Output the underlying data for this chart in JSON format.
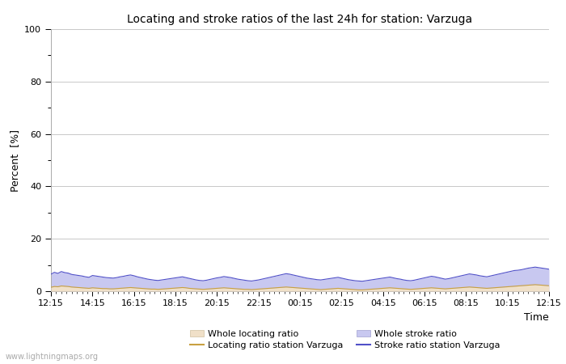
{
  "title": "Locating and stroke ratios of the last 24h for station: Varzuga",
  "ylabel": "Percent  [%]",
  "xlabel": "Time",
  "watermark": "www.lightningmaps.org",
  "ylim": [
    0,
    100
  ],
  "yticks": [
    0,
    20,
    40,
    60,
    80,
    100
  ],
  "ytick_minor": [
    10,
    30,
    50,
    70,
    90
  ],
  "xtick_labels": [
    "12:15",
    "14:15",
    "16:15",
    "18:15",
    "20:15",
    "22:15",
    "00:15",
    "02:15",
    "04:15",
    "06:15",
    "08:15",
    "10:15",
    "12:15"
  ],
  "bg_color": "#ffffff",
  "plot_bg_color": "#ffffff",
  "grid_color": "#c8c8c8",
  "stroke_ratio_fill_color": "#c8c8f0",
  "stroke_ratio_line_color": "#5050c8",
  "locating_ratio_fill_color": "#f0e0c8",
  "locating_ratio_line_color": "#c8a040",
  "n_points": 145,
  "stroke_ratio_data": [
    6.5,
    7.2,
    6.8,
    7.5,
    7.1,
    6.9,
    6.4,
    6.2,
    6.0,
    5.8,
    5.5,
    5.3,
    6.0,
    5.8,
    5.6,
    5.4,
    5.2,
    5.1,
    5.0,
    5.2,
    5.5,
    5.7,
    6.0,
    6.2,
    5.9,
    5.5,
    5.2,
    4.9,
    4.6,
    4.4,
    4.2,
    4.1,
    4.3,
    4.5,
    4.7,
    4.9,
    5.1,
    5.3,
    5.5,
    5.2,
    4.9,
    4.6,
    4.3,
    4.1,
    4.0,
    4.2,
    4.5,
    4.8,
    5.1,
    5.3,
    5.6,
    5.4,
    5.2,
    4.9,
    4.6,
    4.4,
    4.2,
    4.0,
    3.9,
    4.1,
    4.3,
    4.6,
    4.9,
    5.2,
    5.5,
    5.8,
    6.1,
    6.4,
    6.7,
    6.5,
    6.2,
    5.9,
    5.6,
    5.3,
    5.0,
    4.8,
    4.6,
    4.4,
    4.3,
    4.5,
    4.7,
    4.9,
    5.1,
    5.3,
    5.0,
    4.7,
    4.4,
    4.2,
    4.0,
    3.9,
    3.8,
    4.0,
    4.2,
    4.4,
    4.6,
    4.8,
    5.0,
    5.2,
    5.4,
    5.1,
    4.8,
    4.6,
    4.3,
    4.1,
    4.0,
    4.2,
    4.5,
    4.8,
    5.1,
    5.4,
    5.7,
    5.5,
    5.2,
    4.9,
    4.6,
    4.8,
    5.1,
    5.4,
    5.7,
    6.0,
    6.3,
    6.6,
    6.4,
    6.2,
    5.9,
    5.7,
    5.5,
    5.8,
    6.1,
    6.4,
    6.7,
    7.0,
    7.3,
    7.6,
    7.9,
    8.0,
    8.2,
    8.5,
    8.8,
    9.0,
    9.2,
    9.0,
    8.8,
    8.6,
    8.4
  ],
  "locating_ratio_data": [
    1.5,
    1.8,
    1.7,
    2.0,
    1.9,
    1.8,
    1.6,
    1.5,
    1.4,
    1.3,
    1.2,
    1.1,
    1.3,
    1.2,
    1.1,
    1.0,
    1.0,
    0.9,
    0.9,
    1.0,
    1.1,
    1.2,
    1.3,
    1.4,
    1.3,
    1.2,
    1.1,
    1.0,
    0.9,
    0.8,
    0.8,
    0.7,
    0.8,
    0.9,
    1.0,
    1.1,
    1.2,
    1.3,
    1.4,
    1.3,
    1.1,
    1.0,
    0.9,
    0.8,
    0.7,
    0.8,
    0.9,
    1.0,
    1.1,
    1.2,
    1.3,
    1.2,
    1.1,
    1.0,
    0.9,
    0.8,
    0.7,
    0.7,
    0.6,
    0.7,
    0.8,
    0.9,
    1.0,
    1.1,
    1.2,
    1.3,
    1.4,
    1.5,
    1.6,
    1.5,
    1.4,
    1.3,
    1.2,
    1.1,
    1.0,
    0.9,
    0.8,
    0.7,
    0.6,
    0.7,
    0.8,
    0.9,
    1.0,
    1.1,
    1.0,
    0.9,
    0.8,
    0.7,
    0.6,
    0.5,
    0.5,
    0.6,
    0.7,
    0.8,
    0.9,
    1.0,
    1.1,
    1.2,
    1.3,
    1.2,
    1.1,
    1.0,
    0.9,
    0.8,
    0.7,
    0.8,
    0.9,
    1.0,
    1.1,
    1.2,
    1.3,
    1.2,
    1.1,
    1.0,
    0.9,
    1.0,
    1.1,
    1.2,
    1.3,
    1.4,
    1.5,
    1.6,
    1.5,
    1.4,
    1.3,
    1.2,
    1.1,
    1.2,
    1.3,
    1.4,
    1.5,
    1.6,
    1.7,
    1.8,
    1.9,
    2.0,
    2.1,
    2.2,
    2.3,
    2.4,
    2.5,
    2.4,
    2.3,
    2.2,
    2.1
  ]
}
